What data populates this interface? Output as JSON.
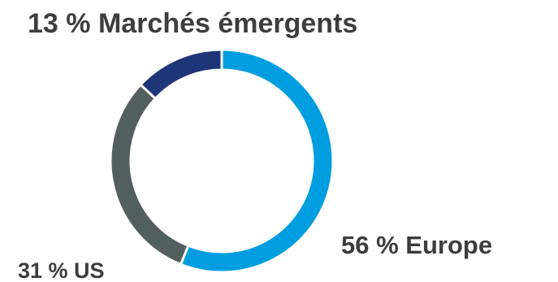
{
  "chart_data": {
    "type": "pie",
    "style": "donut",
    "categories": [
      "Europe",
      "US",
      "Marchés émergents"
    ],
    "values": [
      56,
      31,
      13
    ],
    "unit": "%",
    "labels": [
      "56 % Europe",
      "31 % US",
      "13 % Marchés émergents"
    ],
    "colors": [
      "#009ee0",
      "#535e5f",
      "#1e3678"
    ],
    "legend": "none",
    "title": ""
  }
}
